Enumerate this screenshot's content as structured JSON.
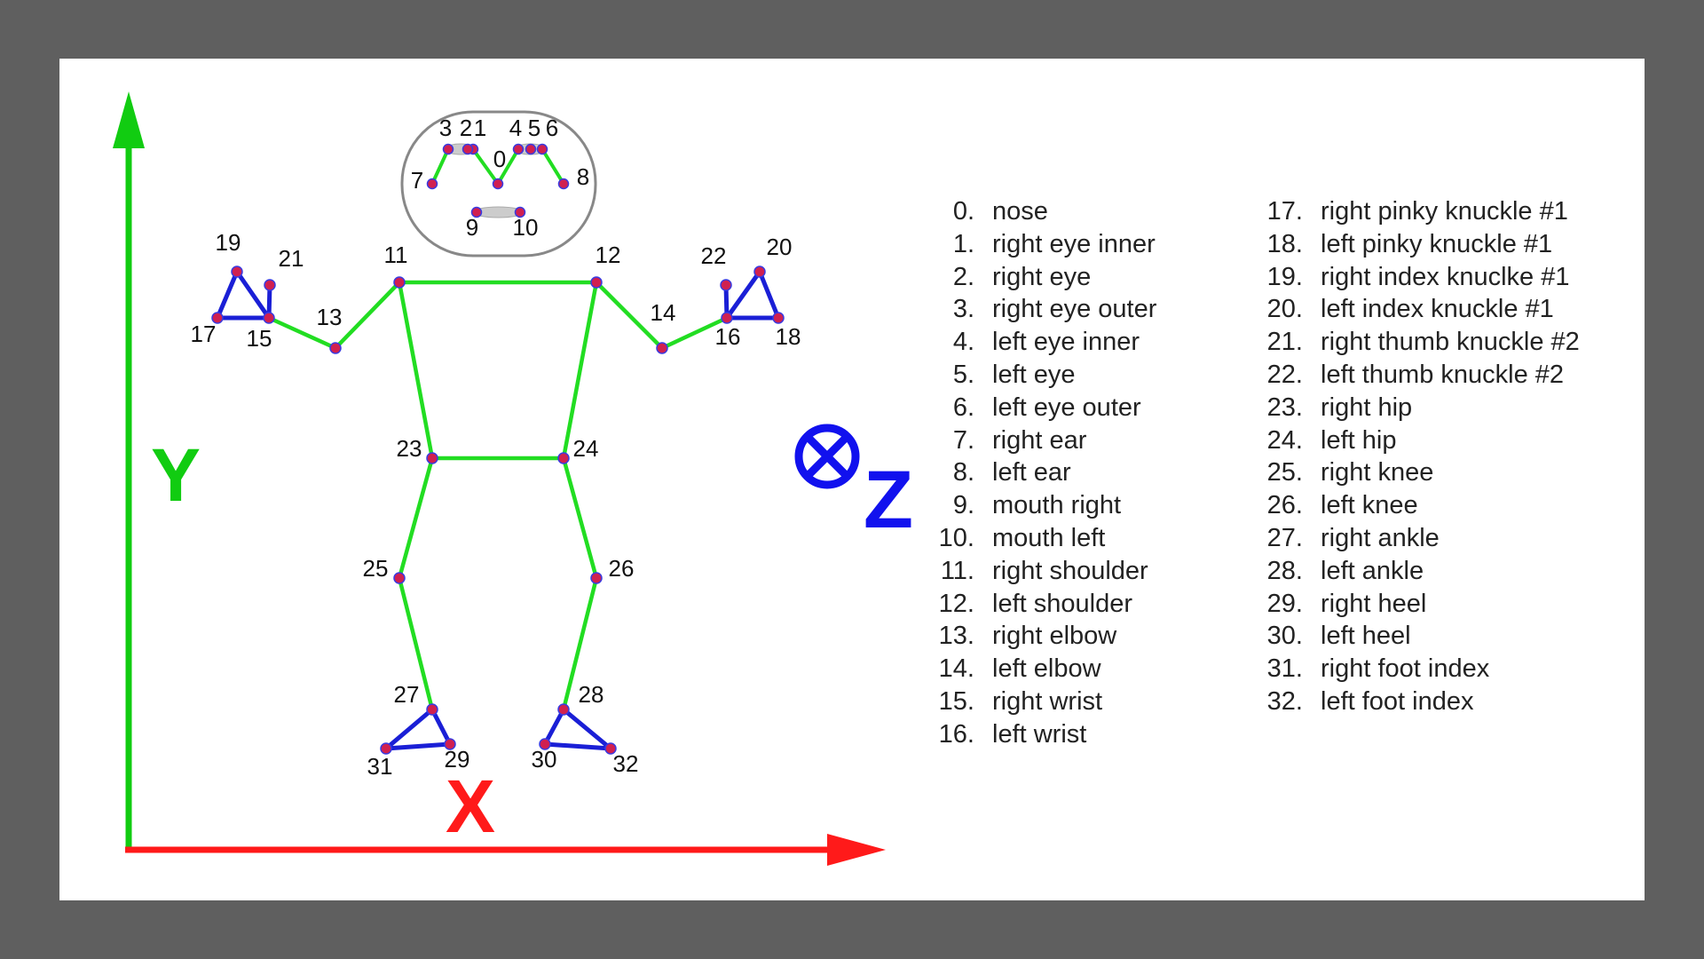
{
  "axes": {
    "x": "X",
    "y": "Y",
    "z": "Z"
  },
  "colors": {
    "background": "#5f5f5f",
    "canvas": "#ffffff",
    "limb": "#22dd22",
    "hand_foot": "#1a1fd6",
    "point_fill": "#d02050",
    "point_ring": "#3a3ae0",
    "x_axis": "#ff1a1a",
    "y_axis": "#11cc11",
    "z_axis": "#1111ee",
    "face_outline": "#888888"
  },
  "landmarks": [
    {
      "id": "0",
      "name": "nose"
    },
    {
      "id": "1",
      "name": "right eye inner"
    },
    {
      "id": "2",
      "name": "right eye"
    },
    {
      "id": "3",
      "name": "right eye outer"
    },
    {
      "id": "4",
      "name": "left eye inner"
    },
    {
      "id": "5",
      "name": "left eye"
    },
    {
      "id": "6",
      "name": "left eye outer"
    },
    {
      "id": "7",
      "name": "right ear"
    },
    {
      "id": "8",
      "name": "left ear"
    },
    {
      "id": "9",
      "name": "mouth right"
    },
    {
      "id": "10",
      "name": "mouth left"
    },
    {
      "id": "11",
      "name": "right shoulder"
    },
    {
      "id": "12",
      "name": "left shoulder"
    },
    {
      "id": "13",
      "name": "right elbow"
    },
    {
      "id": "14",
      "name": "left elbow"
    },
    {
      "id": "15",
      "name": "right wrist"
    },
    {
      "id": "16",
      "name": "left wrist"
    },
    {
      "id": "17",
      "name": "right pinky knuckle #1"
    },
    {
      "id": "18",
      "name": "left pinky knuckle #1"
    },
    {
      "id": "19",
      "name": "right index knuclke #1"
    },
    {
      "id": "20",
      "name": "left index knuckle #1"
    },
    {
      "id": "21",
      "name": "right thumb knuckle #2"
    },
    {
      "id": "22",
      "name": "left thumb knuckle #2"
    },
    {
      "id": "23",
      "name": "right hip"
    },
    {
      "id": "24",
      "name": "left hip"
    },
    {
      "id": "25",
      "name": "right knee"
    },
    {
      "id": "26",
      "name": "left knee"
    },
    {
      "id": "27",
      "name": "right ankle"
    },
    {
      "id": "28",
      "name": "left ankle"
    },
    {
      "id": "29",
      "name": "right heel"
    },
    {
      "id": "30",
      "name": "left heel"
    },
    {
      "id": "31",
      "name": "right foot index"
    },
    {
      "id": "32",
      "name": "left foot index"
    }
  ],
  "legend": {
    "column1": [
      {
        "num": "0.",
        "name": "nose"
      },
      {
        "num": "1.",
        "name": "right eye inner"
      },
      {
        "num": "2.",
        "name": "right eye"
      },
      {
        "num": "3.",
        "name": "right eye outer"
      },
      {
        "num": "4.",
        "name": "left eye inner"
      },
      {
        "num": "5.",
        "name": "left eye"
      },
      {
        "num": "6.",
        "name": "left eye outer"
      },
      {
        "num": "7.",
        "name": "right ear"
      },
      {
        "num": "8.",
        "name": "left ear"
      },
      {
        "num": "9.",
        "name": "mouth right"
      },
      {
        "num": "10.",
        "name": "mouth left"
      },
      {
        "num": "11.",
        "name": "right shoulder"
      },
      {
        "num": "12.",
        "name": "left shoulder"
      },
      {
        "num": "13.",
        "name": "right elbow"
      },
      {
        "num": "14.",
        "name": "left elbow"
      },
      {
        "num": "15.",
        "name": "right wrist"
      },
      {
        "num": "16.",
        "name": "left wrist"
      }
    ],
    "column2": [
      {
        "num": "17.",
        "name": "right pinky knuckle #1"
      },
      {
        "num": "18.",
        "name": "left pinky knuckle #1"
      },
      {
        "num": "19.",
        "name": "right index knuclke #1"
      },
      {
        "num": "20.",
        "name": "left index knuckle #1"
      },
      {
        "num": "21.",
        "name": "right thumb knuckle #2"
      },
      {
        "num": "22.",
        "name": "left thumb knuckle #2"
      },
      {
        "num": "23.",
        "name": "right hip"
      },
      {
        "num": "24.",
        "name": "left hip"
      },
      {
        "num": "25.",
        "name": "right knee"
      },
      {
        "num": "26.",
        "name": "left knee"
      },
      {
        "num": "27.",
        "name": "right ankle"
      },
      {
        "num": "28.",
        "name": "left ankle"
      },
      {
        "num": "29.",
        "name": "right heel"
      },
      {
        "num": "30.",
        "name": "left heel"
      },
      {
        "num": "31.",
        "name": "right foot index"
      },
      {
        "num": "32.",
        "name": "left foot index"
      }
    ]
  }
}
